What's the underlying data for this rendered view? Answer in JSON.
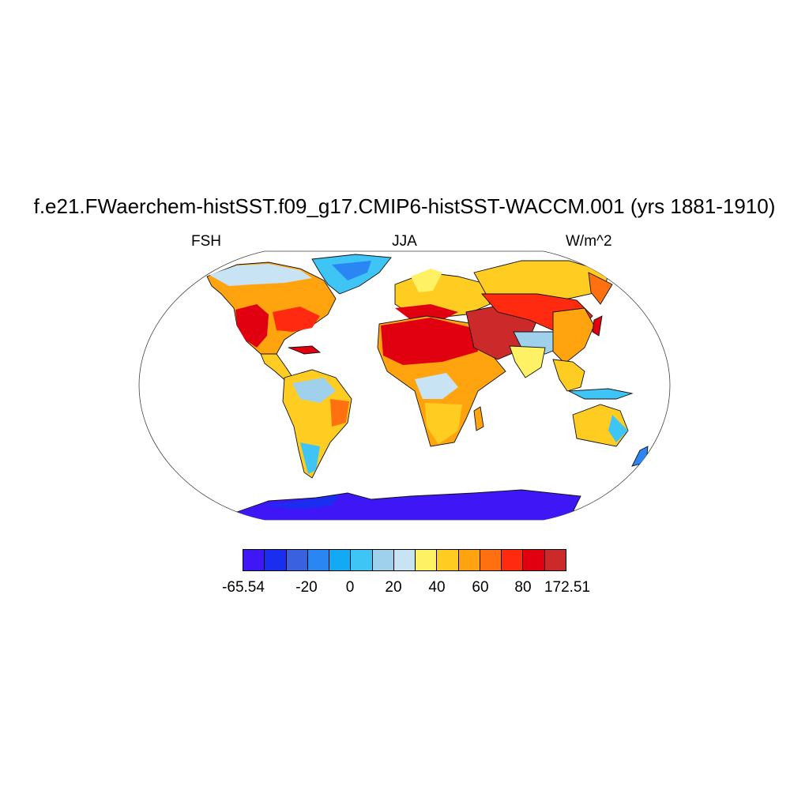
{
  "title": "f.e21.FWaerchem-histSST.f09_g17.CMIP6-histSST-WACCM.001 (yrs 1881-1910)",
  "left_label": "FSH",
  "center_label": "JJA",
  "right_label": "W/m^2",
  "map": {
    "projection": "robinson",
    "variable": "FSH",
    "ocean_color": "#ffffff",
    "coastline_color": "#000000"
  },
  "colorbar": {
    "colors": [
      "#3f16f5",
      "#1a2ef0",
      "#3a62e0",
      "#2a86f2",
      "#12aaf5",
      "#3ec4f5",
      "#9fd0ec",
      "#c8e4f4",
      "#fff164",
      "#ffcc22",
      "#ffa40e",
      "#ff7010",
      "#ff2a10",
      "#e00010",
      "#cc2a2a"
    ],
    "tick_labels": [
      "-65.54",
      "-20",
      "0",
      "20",
      "40",
      "60",
      "80",
      "172.51"
    ]
  },
  "regions": [
    {
      "name": "Antarctica",
      "color": "#3f16f5"
    },
    {
      "name": "Greenland",
      "color": "#3ec4f5"
    },
    {
      "name": "North Africa",
      "color": "#e00010"
    },
    {
      "name": "Southwest USA",
      "color": "#e00010"
    },
    {
      "name": "Middle East",
      "color": "#cc2a2a"
    },
    {
      "name": "Amazon",
      "color": "#9fd0ec"
    },
    {
      "name": "Australia",
      "color": "#ffcc22"
    },
    {
      "name": "Siberia",
      "color": "#ffcc22"
    }
  ]
}
